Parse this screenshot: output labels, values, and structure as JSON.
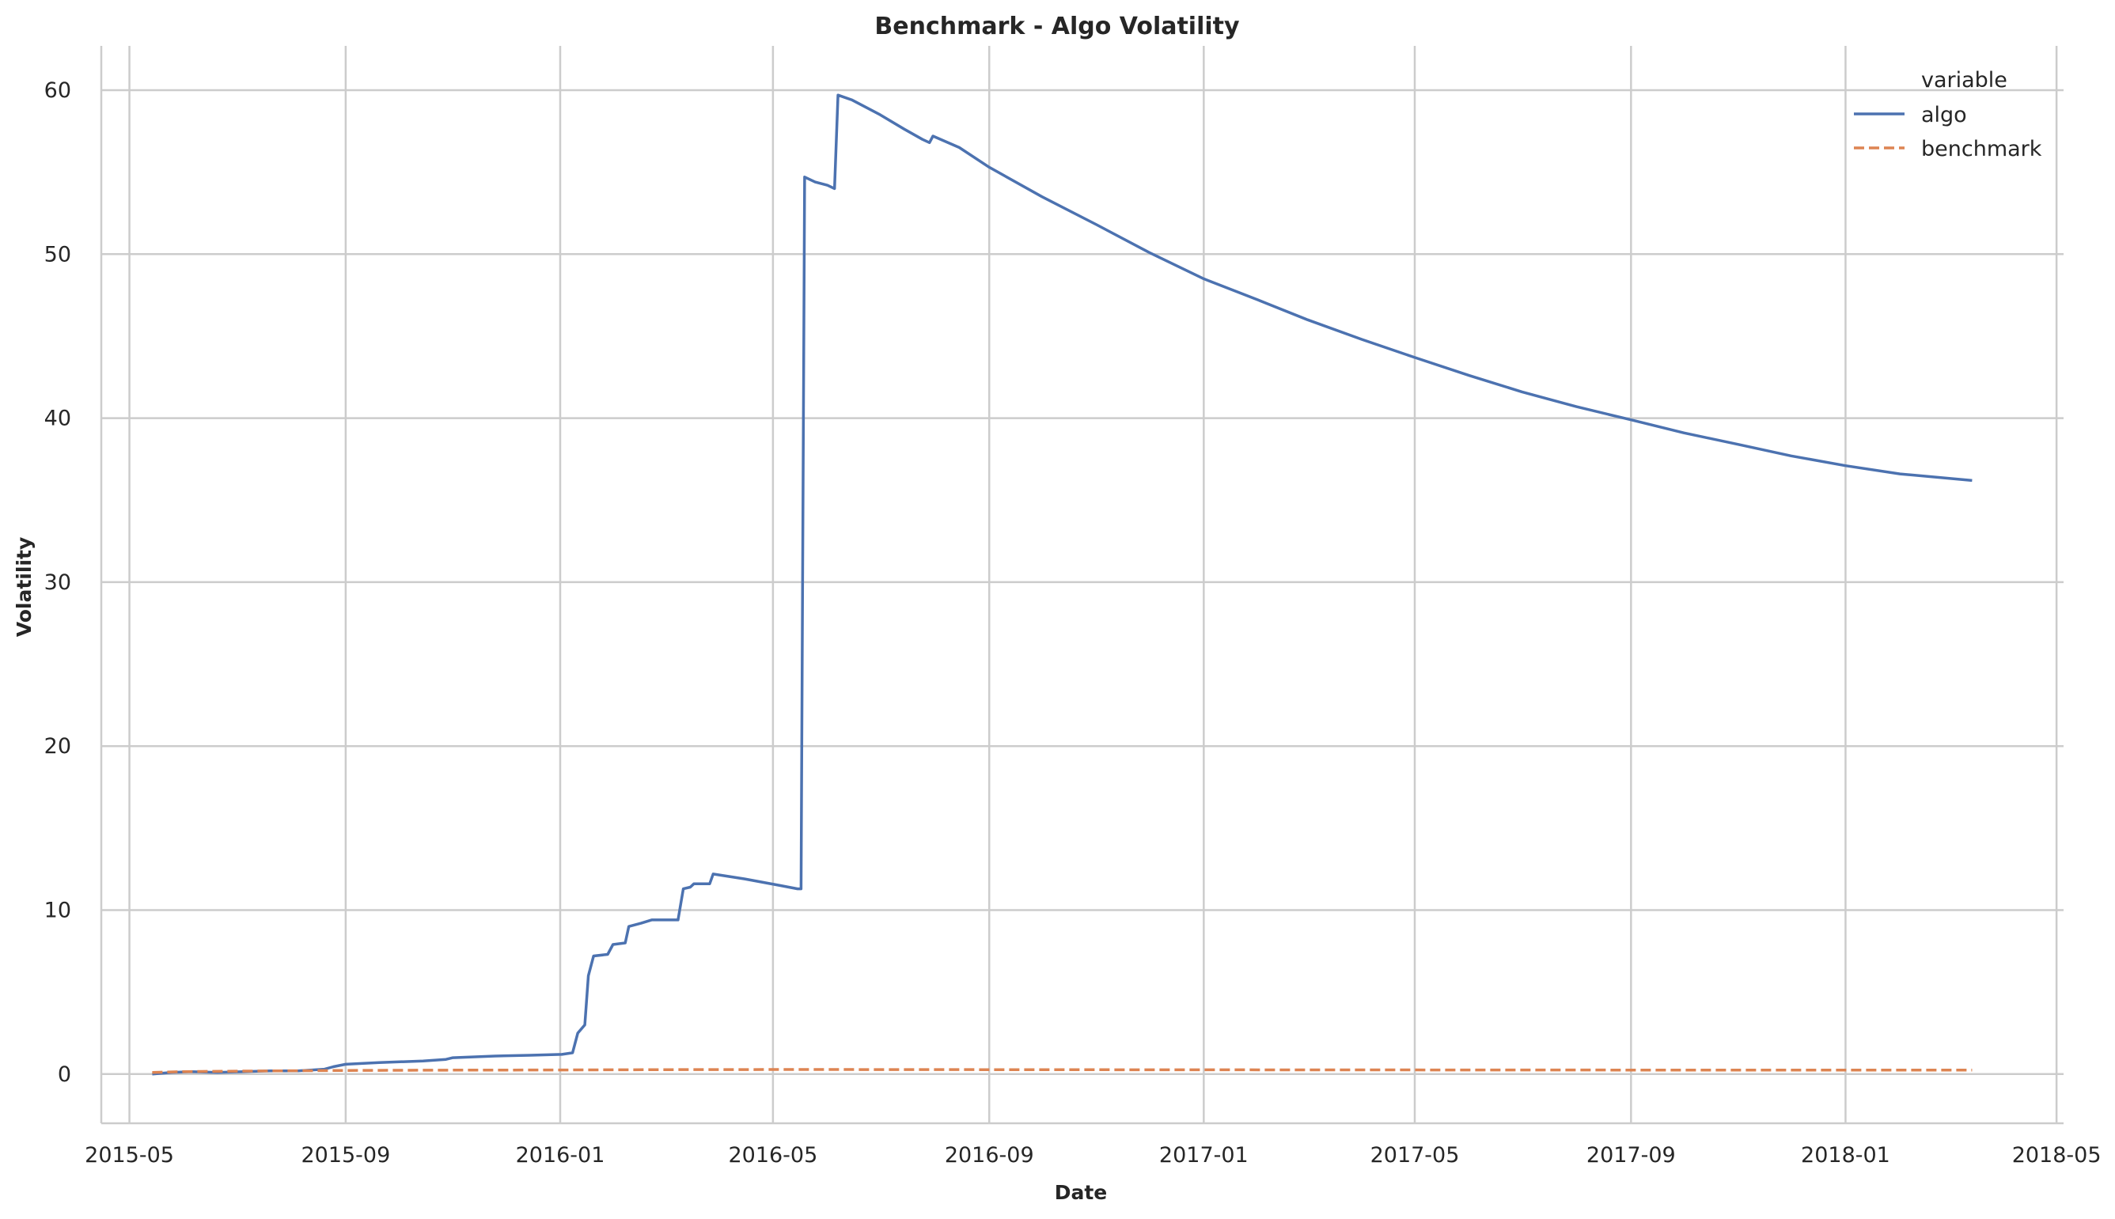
{
  "chart_data": {
    "type": "line",
    "title": "Benchmark - Algo Volatility",
    "xlabel": "Date",
    "ylabel": "Volatility",
    "x_ticks": [
      "2015-05",
      "2015-09",
      "2016-01",
      "2016-05",
      "2016-09",
      "2017-01",
      "2017-05",
      "2017-09",
      "2018-01",
      "2018-05"
    ],
    "y_ticks": [
      0,
      10,
      20,
      30,
      40,
      50,
      60
    ],
    "xlim": [
      "2015-04-15",
      "2018-05-05"
    ],
    "ylim": [
      -3,
      62.7
    ],
    "grid": true,
    "legend": {
      "title": "variable",
      "placement": "top-right"
    },
    "series": [
      {
        "name": "algo",
        "color": "#4c72b0",
        "style": "solid",
        "points": [
          [
            "2015-05-14",
            0.0
          ],
          [
            "2015-05-25",
            0.1
          ],
          [
            "2015-06-05",
            0.15
          ],
          [
            "2015-06-20",
            0.1
          ],
          [
            "2015-07-05",
            0.15
          ],
          [
            "2015-07-20",
            0.2
          ],
          [
            "2015-08-05",
            0.2
          ],
          [
            "2015-08-20",
            0.3
          ],
          [
            "2015-08-25",
            0.45
          ],
          [
            "2015-09-01",
            0.6
          ],
          [
            "2015-09-20",
            0.7
          ],
          [
            "2015-10-15",
            0.8
          ],
          [
            "2015-10-28",
            0.9
          ],
          [
            "2015-11-01",
            1.0
          ],
          [
            "2015-11-25",
            1.1
          ],
          [
            "2015-12-15",
            1.15
          ],
          [
            "2016-01-02",
            1.2
          ],
          [
            "2016-01-08",
            1.3
          ],
          [
            "2016-01-11",
            2.5
          ],
          [
            "2016-01-15",
            3.0
          ],
          [
            "2016-01-17",
            6.0
          ],
          [
            "2016-01-20",
            7.2
          ],
          [
            "2016-01-28",
            7.3
          ],
          [
            "2016-01-31",
            7.9
          ],
          [
            "2016-02-07",
            8.0
          ],
          [
            "2016-02-09",
            9.0
          ],
          [
            "2016-02-16",
            9.2
          ],
          [
            "2016-02-22",
            9.4
          ],
          [
            "2016-03-08",
            9.4
          ],
          [
            "2016-03-11",
            11.3
          ],
          [
            "2016-03-15",
            11.4
          ],
          [
            "2016-03-17",
            11.6
          ],
          [
            "2016-03-26",
            11.6
          ],
          [
            "2016-03-28",
            12.2
          ],
          [
            "2016-04-15",
            11.9
          ],
          [
            "2016-05-05",
            11.5
          ],
          [
            "2016-05-15",
            11.3
          ],
          [
            "2016-05-17",
            11.3
          ],
          [
            "2016-05-19",
            54.7
          ],
          [
            "2016-05-25",
            54.4
          ],
          [
            "2016-06-01",
            54.2
          ],
          [
            "2016-06-05",
            54.0
          ],
          [
            "2016-06-07",
            59.7
          ],
          [
            "2016-06-15",
            59.4
          ],
          [
            "2016-07-01",
            58.5
          ],
          [
            "2016-07-15",
            57.6
          ],
          [
            "2016-07-25",
            57.0
          ],
          [
            "2016-07-29",
            56.8
          ],
          [
            "2016-07-31",
            57.2
          ],
          [
            "2016-08-15",
            56.5
          ],
          [
            "2016-09-01",
            55.3
          ],
          [
            "2016-10-01",
            53.5
          ],
          [
            "2016-11-01",
            51.8
          ],
          [
            "2016-12-01",
            50.1
          ],
          [
            "2017-01-01",
            48.5
          ],
          [
            "2017-02-01",
            47.2
          ],
          [
            "2017-03-01",
            46.0
          ],
          [
            "2017-04-01",
            44.8
          ],
          [
            "2017-05-01",
            43.7
          ],
          [
            "2017-06-01",
            42.6
          ],
          [
            "2017-07-01",
            41.6
          ],
          [
            "2017-08-01",
            40.7
          ],
          [
            "2017-09-01",
            39.9
          ],
          [
            "2017-10-01",
            39.1
          ],
          [
            "2017-11-01",
            38.4
          ],
          [
            "2017-12-01",
            37.7
          ],
          [
            "2018-01-01",
            37.1
          ],
          [
            "2018-02-01",
            36.6
          ],
          [
            "2018-03-14",
            36.2
          ]
        ]
      },
      {
        "name": "benchmark",
        "color": "#dd8452",
        "style": "dashed",
        "points": [
          [
            "2015-05-14",
            0.1
          ],
          [
            "2015-06-01",
            0.15
          ],
          [
            "2015-07-01",
            0.18
          ],
          [
            "2015-09-01",
            0.22
          ],
          [
            "2015-11-01",
            0.24
          ],
          [
            "2016-01-01",
            0.25
          ],
          [
            "2016-03-01",
            0.27
          ],
          [
            "2016-05-15",
            0.28
          ],
          [
            "2016-09-01",
            0.27
          ],
          [
            "2017-01-01",
            0.26
          ],
          [
            "2017-06-01",
            0.25
          ],
          [
            "2017-12-01",
            0.24
          ],
          [
            "2018-03-14",
            0.24
          ]
        ]
      }
    ]
  }
}
